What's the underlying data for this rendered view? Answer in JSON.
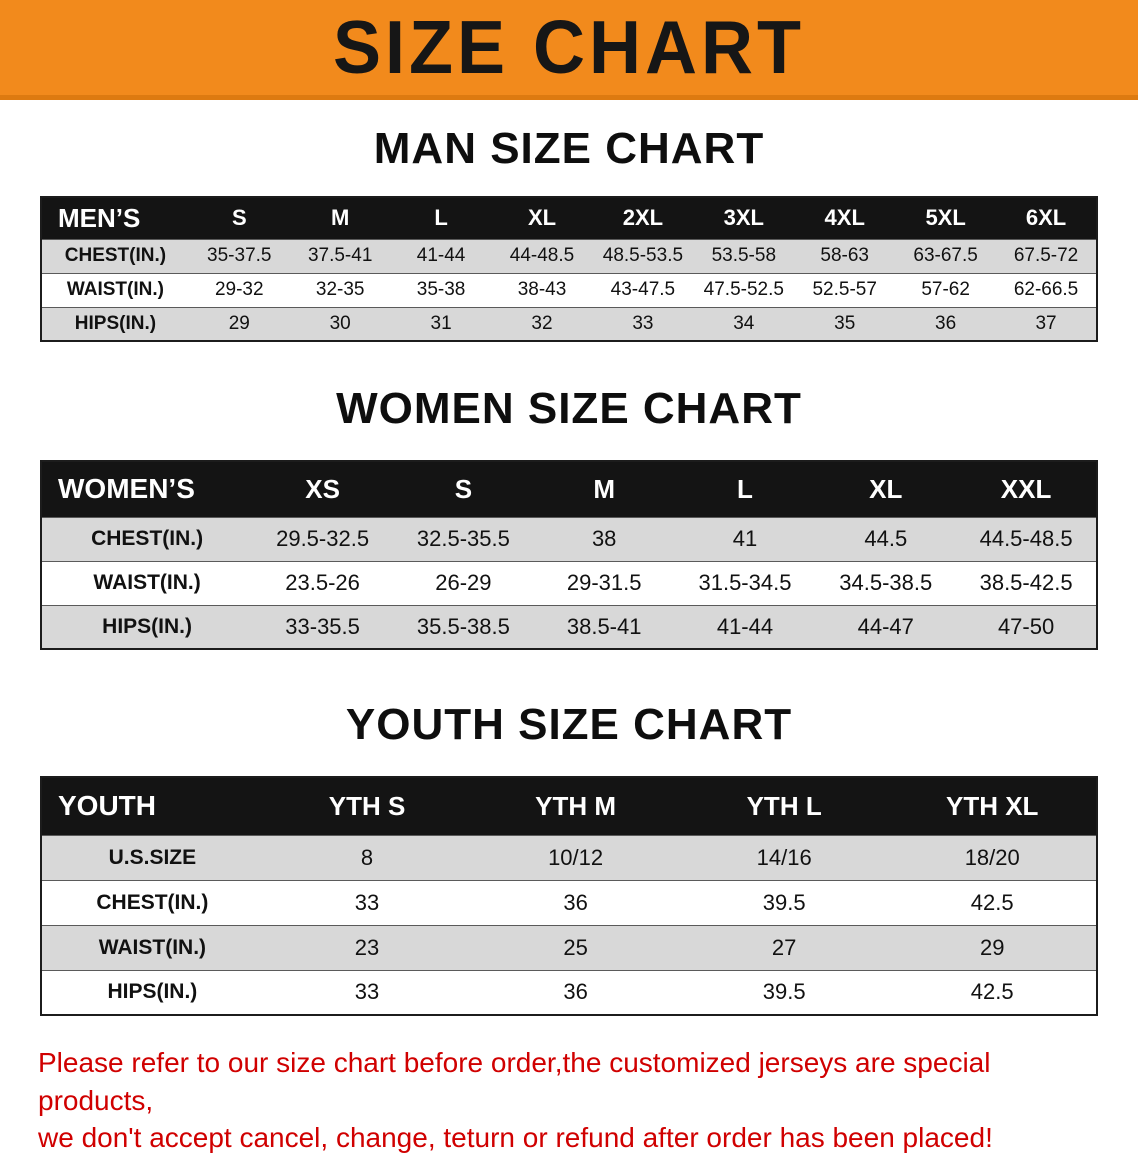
{
  "banner": {
    "title": "SIZE CHART"
  },
  "colors": {
    "banner_orange": "#f28a1c",
    "banner_orange_dark": "#dd7a10",
    "header_black": "#141414",
    "row_shaded": "#d8d8d8",
    "row_plain": "#ffffff",
    "disclaimer_red": "#d00000"
  },
  "sections": {
    "men": {
      "heading": "MAN SIZE CHART"
    },
    "women": {
      "heading": "WOMEN SIZE CHART"
    },
    "youth": {
      "heading": "YOUTH SIZE CHART"
    }
  },
  "tables": {
    "men": {
      "header": [
        "MEN’S",
        "S",
        "M",
        "L",
        "XL",
        "2XL",
        "3XL",
        "4XL",
        "5XL",
        "6XL"
      ],
      "rows": [
        [
          "CHEST(IN.)",
          "35-37.5",
          "37.5-41",
          "41-44",
          "44-48.5",
          "48.5-53.5",
          "53.5-58",
          "58-63",
          "63-67.5",
          "67.5-72"
        ],
        [
          "WAIST(IN.)",
          "29-32",
          "32-35",
          "35-38",
          "38-43",
          "43-47.5",
          "47.5-52.5",
          "52.5-57",
          "57-62",
          "62-66.5"
        ],
        [
          "HIPS(IN.)",
          "29",
          "30",
          "31",
          "32",
          "33",
          "34",
          "35",
          "36",
          "37"
        ]
      ]
    },
    "women": {
      "header": [
        "WOMEN’S",
        "XS",
        "S",
        "M",
        "L",
        "XL",
        "XXL"
      ],
      "rows": [
        [
          "CHEST(IN.)",
          "29.5-32.5",
          "32.5-35.5",
          "38",
          "41",
          "44.5",
          "44.5-48.5"
        ],
        [
          "WAIST(IN.)",
          "23.5-26",
          "26-29",
          "29-31.5",
          "31.5-34.5",
          "34.5-38.5",
          "38.5-42.5"
        ],
        [
          "HIPS(IN.)",
          "33-35.5",
          "35.5-38.5",
          "38.5-41",
          "41-44",
          "44-47",
          "47-50"
        ]
      ]
    },
    "youth": {
      "header": [
        "YOUTH",
        "YTH S",
        "YTH M",
        "YTH L",
        "YTH XL"
      ],
      "rows": [
        [
          "U.S.SIZE",
          "8",
          "10/12",
          "14/16",
          "18/20"
        ],
        [
          "CHEST(IN.)",
          "33",
          "36",
          "39.5",
          "42.5"
        ],
        [
          "WAIST(IN.)",
          "23",
          "25",
          "27",
          "29"
        ],
        [
          "HIPS(IN.)",
          "33",
          "36",
          "39.5",
          "42.5"
        ]
      ]
    }
  },
  "disclaimer": {
    "line1": "Please refer to our size chart before order,the customized jerseys are special products,",
    "line2": "we don't accept cancel, change, teturn or refund after order has been placed!"
  }
}
